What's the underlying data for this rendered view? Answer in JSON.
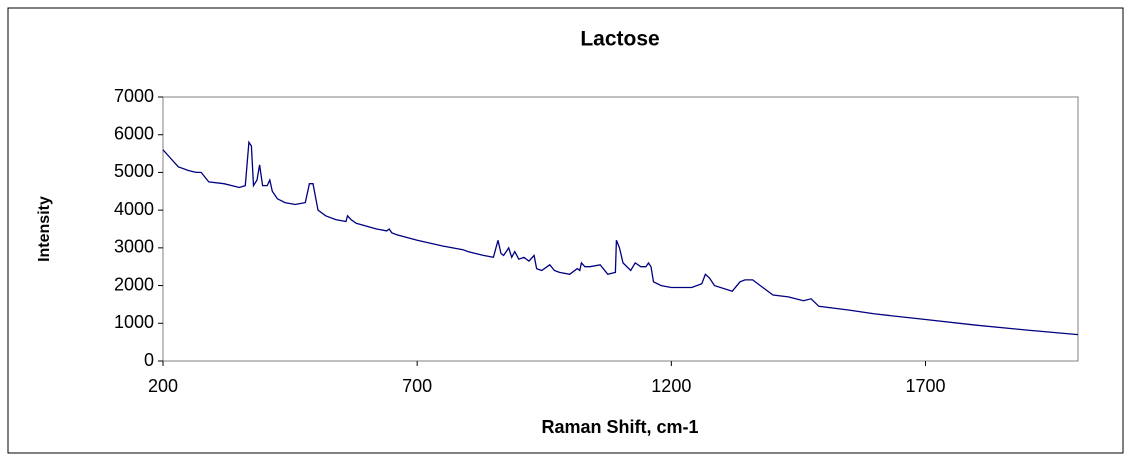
{
  "chart_data": {
    "type": "line",
    "title": "Lactose",
    "x_label": "Raman Shift, cm-1",
    "y_label": "Intensity",
    "x": [
      200,
      210,
      230,
      250,
      265,
      275,
      290,
      320,
      350,
      362,
      369,
      374,
      378,
      385,
      390,
      396,
      405,
      410,
      415,
      425,
      440,
      460,
      480,
      488,
      495,
      505,
      520,
      540,
      560,
      563,
      570,
      580,
      620,
      640,
      645,
      650,
      660,
      700,
      750,
      790,
      800,
      830,
      850,
      859,
      865,
      870,
      880,
      886,
      892,
      900,
      910,
      920,
      930,
      935,
      945,
      961,
      970,
      980,
      1000,
      1015,
      1020,
      1023,
      1030,
      1040,
      1060,
      1075,
      1090,
      1092,
      1098,
      1105,
      1120,
      1129,
      1140,
      1150,
      1155,
      1160,
      1165,
      1180,
      1200,
      1240,
      1260,
      1267,
      1275,
      1285,
      1320,
      1335,
      1345,
      1360,
      1380,
      1400,
      1430,
      1460,
      1475,
      1490,
      1550,
      1600,
      1700,
      1800,
      1900,
      2000
    ],
    "series": [
      {
        "name": "Lactose",
        "color": "#000080",
        "values": [
          5600,
          5450,
          5150,
          5050,
          5000,
          5000,
          4750,
          4700,
          4600,
          4650,
          5800,
          5700,
          4650,
          4800,
          5200,
          4650,
          4650,
          4800,
          4500,
          4300,
          4200,
          4150,
          4200,
          4700,
          4700,
          4000,
          3850,
          3750,
          3700,
          3850,
          3750,
          3650,
          3500,
          3450,
          3500,
          3400,
          3350,
          3200,
          3050,
          2950,
          2900,
          2800,
          2750,
          3200,
          2850,
          2800,
          3000,
          2750,
          2900,
          2700,
          2750,
          2650,
          2800,
          2450,
          2400,
          2550,
          2400,
          2350,
          2300,
          2450,
          2400,
          2600,
          2500,
          2500,
          2550,
          2300,
          2350,
          3200,
          3000,
          2600,
          2400,
          2600,
          2500,
          2500,
          2600,
          2500,
          2100,
          2000,
          1950,
          1950,
          2050,
          2300,
          2200,
          2000,
          1850,
          2100,
          2150,
          2150,
          1950,
          1750,
          1700,
          1600,
          1650,
          1450,
          1350,
          1250,
          1100,
          950,
          820,
          700
        ]
      }
    ],
    "xlim": [
      200,
      2000
    ],
    "xticks": [
      200,
      700,
      1200,
      1700
    ],
    "ylim": [
      0,
      7000
    ],
    "yticks": [
      0,
      1000,
      2000,
      3000,
      4000,
      5000,
      6000,
      7000
    ]
  }
}
